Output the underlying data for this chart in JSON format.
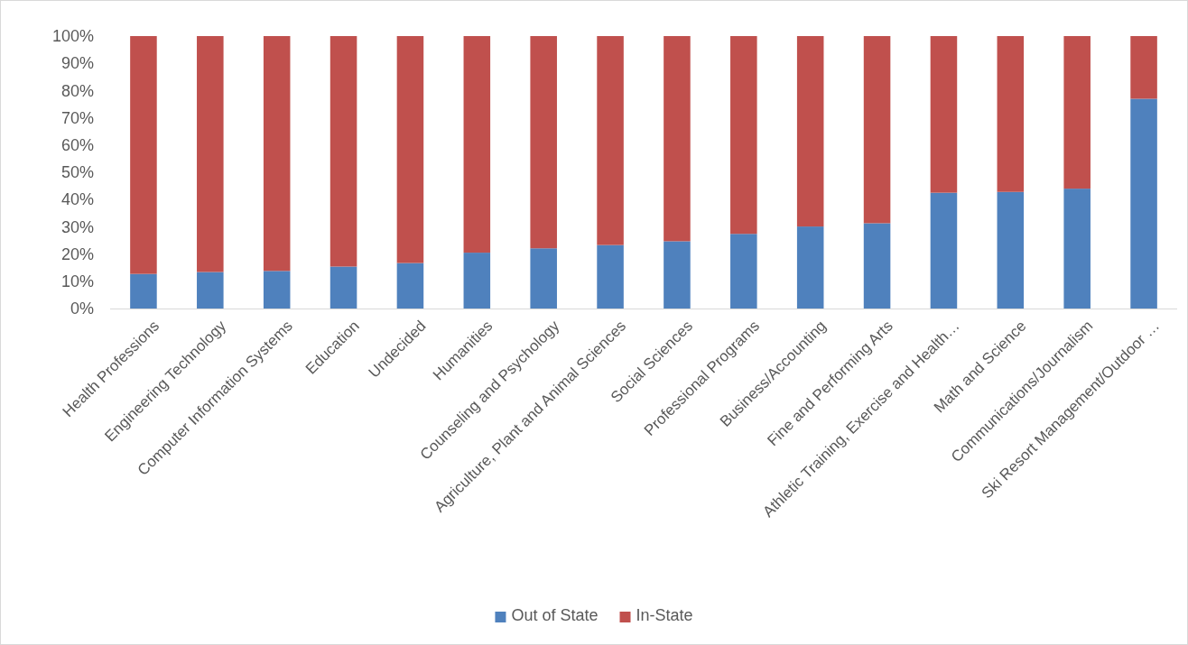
{
  "chart_data": {
    "type": "bar",
    "stacked": true,
    "categories": [
      "Health Professions",
      "Engineering Technology",
      "Computer Information Systems",
      "Education",
      "Undecided",
      "Humanities",
      "Counseling and Psychology",
      "Agriculture, Plant and Animal Sciences",
      "Social Sciences",
      "Professional Programs",
      "Business/Accounting",
      "Fine and Performing Arts",
      "Athletic Training, Exercise and Health…",
      "Math and Science",
      "Communications/Journalism",
      "Ski Resort Management/Outdoor …"
    ],
    "series": [
      {
        "name": "Out of State",
        "color": "#4f81bd",
        "values": [
          12.7,
          13.4,
          13.8,
          15.4,
          16.7,
          20.5,
          22.1,
          23.3,
          24.7,
          27.4,
          30.1,
          31.3,
          42.5,
          42.8,
          44.0,
          77.0
        ]
      },
      {
        "name": "In-State",
        "color": "#c0504d",
        "values": [
          87.3,
          86.6,
          86.2,
          84.6,
          83.3,
          79.5,
          77.9,
          76.7,
          75.3,
          72.6,
          69.9,
          68.7,
          57.5,
          57.2,
          56.0,
          23.0
        ]
      }
    ],
    "ylim": [
      0,
      100
    ],
    "yticks": [
      {
        "value": 0,
        "label": "0%"
      },
      {
        "value": 10,
        "label": "10%"
      },
      {
        "value": 20,
        "label": "20%"
      },
      {
        "value": 30,
        "label": "30%"
      },
      {
        "value": 40,
        "label": "40%"
      },
      {
        "value": 50,
        "label": "50%"
      },
      {
        "value": 60,
        "label": "60%"
      },
      {
        "value": 70,
        "label": "70%"
      },
      {
        "value": 80,
        "label": "80%"
      },
      {
        "value": 90,
        "label": "90%"
      },
      {
        "value": 100,
        "label": "100%"
      }
    ],
    "grid": false,
    "legend": "bottom"
  }
}
